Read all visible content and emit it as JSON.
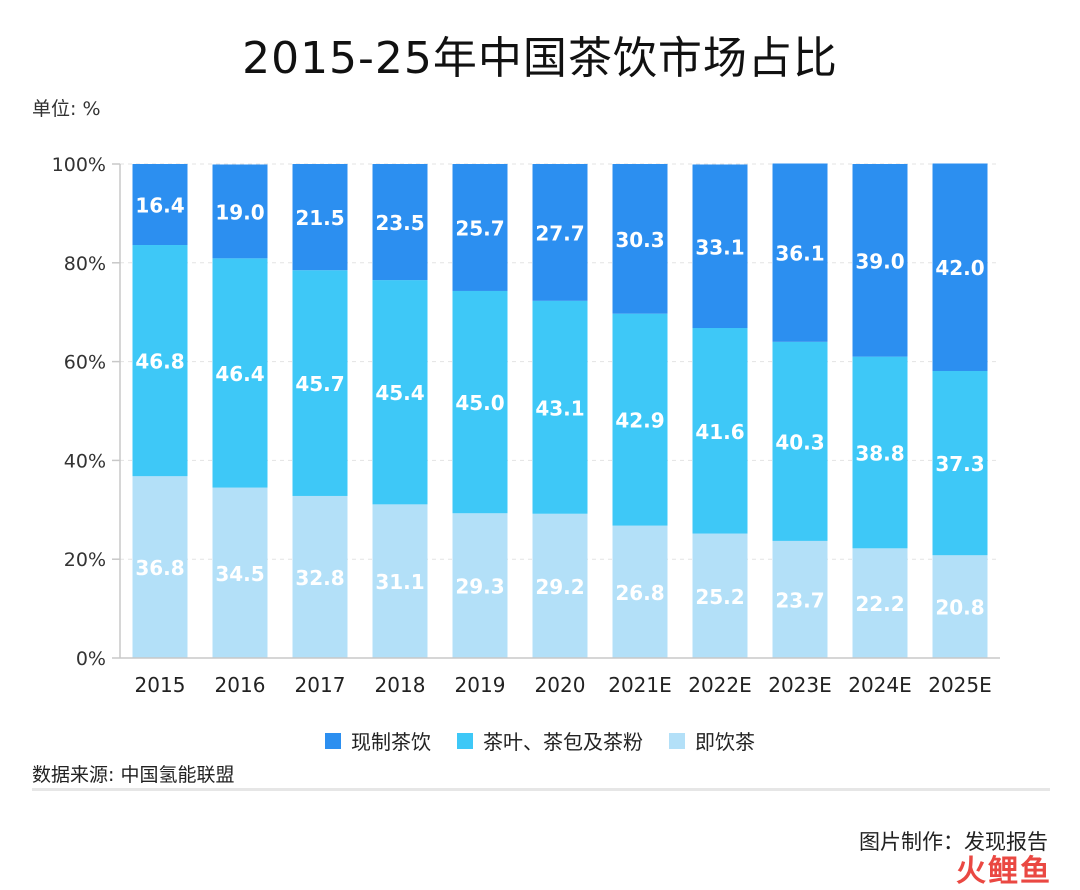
{
  "header": {
    "title": "2015-25年中国茶饮市场占比",
    "unit": "单位: %"
  },
  "footer": {
    "source": "数据来源: 中国氢能联盟",
    "credit": "图片制作：发现报告",
    "watermark": "火鲤鱼"
  },
  "colors": {
    "fresh": "#2c8ff0",
    "leaf": "#3ec8f7",
    "rtd": "#b3e0f8",
    "axis": "#c8c8c8",
    "grid": "#e3e3e3"
  },
  "chart_data": {
    "type": "bar",
    "stacked": true,
    "title": "2015-25年中国茶饮市场占比",
    "categories": [
      "2015",
      "2016",
      "2017",
      "2018",
      "2019",
      "2020",
      "2021E",
      "2022E",
      "2023E",
      "2024E",
      "2025E"
    ],
    "ylim": [
      0,
      100
    ],
    "yticks": [
      "0%",
      "20%",
      "40%",
      "60%",
      "80%",
      "100%"
    ],
    "legend_position": "bottom",
    "grid": true,
    "series": [
      {
        "name": "即饮茶",
        "values": [
          36.8,
          34.5,
          32.8,
          31.1,
          29.3,
          29.2,
          26.8,
          25.2,
          23.7,
          22.2,
          20.8
        ]
      },
      {
        "name": "茶叶、茶包及茶粉",
        "values": [
          46.8,
          46.4,
          45.7,
          45.4,
          45.0,
          43.1,
          42.9,
          41.6,
          40.3,
          38.8,
          37.3
        ]
      },
      {
        "name": "现制茶饮",
        "values": [
          16.4,
          19.0,
          21.5,
          23.5,
          25.7,
          27.7,
          30.3,
          33.1,
          36.1,
          39.0,
          42.0
        ]
      }
    ]
  }
}
